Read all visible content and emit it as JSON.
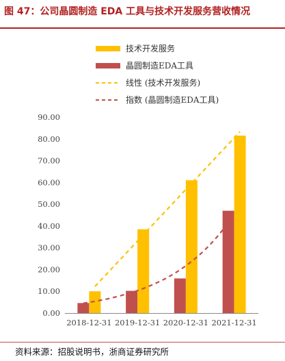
{
  "figure": {
    "title": "图 47：公司晶圆制造 EDA 工具与技术开发服务营收情况",
    "source": "资料来源：招股说明书，浙商证券研究所"
  },
  "colors": {
    "accent": "#b22222",
    "tech_bar": "#ffc000",
    "eda_bar": "#c0504d",
    "axis": "#888888"
  },
  "chart_data": {
    "type": "bar",
    "categories": [
      "2018-12-31",
      "2019-12-31",
      "2020-12-31",
      "2021-12-31"
    ],
    "series": [
      {
        "name": "技术开发服务",
        "kind": "bar",
        "color": "#ffc000",
        "values": [
          10.0,
          38.5,
          61.0,
          81.5
        ]
      },
      {
        "name": "晶圆制造EDA工具",
        "kind": "bar",
        "color": "#c0504d",
        "values": [
          4.6,
          10.2,
          15.9,
          47.0
        ]
      }
    ],
    "trendlines": [
      {
        "name": "线性 (技术开发服务)",
        "style": "dashed",
        "color": "#ffc000",
        "of": "技术开发服务",
        "type": "linear"
      },
      {
        "name": "指数 (晶圆制造EDA工具)",
        "style": "dashed",
        "color": "#c0504d",
        "of": "晶圆制造EDA工具",
        "type": "exponential"
      }
    ],
    "yticks": [
      "0.00",
      "10.00",
      "20.00",
      "30.00",
      "40.00",
      "50.00",
      "60.00",
      "70.00",
      "80.00",
      "90.00"
    ],
    "ylim": [
      0,
      90
    ],
    "grid": false,
    "legend_position": "top",
    "xlabel": "",
    "ylabel": ""
  }
}
